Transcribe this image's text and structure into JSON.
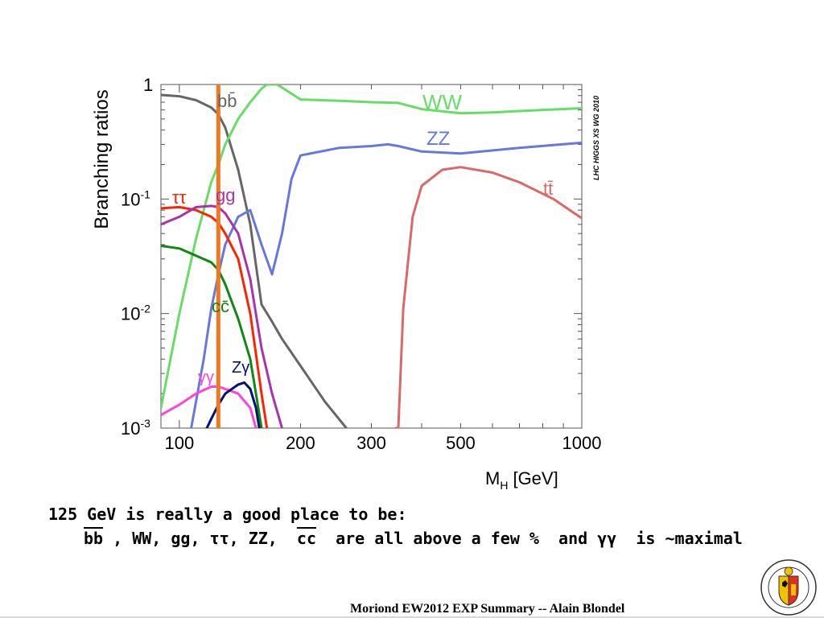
{
  "chart_data": {
    "type": "line",
    "xlabel": "M",
    "xlabel_sub": "H",
    "xlabel_unit": "[GeV]",
    "ylabel": "Branching ratios",
    "watermark": "LHC HIGGS XS WG 2010",
    "x_log_scale": true,
    "y_log_scale": true,
    "xlim": [
      90,
      1000
    ],
    "ylim": [
      0.001,
      1
    ],
    "x_ticks": [
      {
        "value": 100,
        "label": "100"
      },
      {
        "value": 200,
        "label": "200"
      },
      {
        "value": 300,
        "label": "300"
      },
      {
        "value": 500,
        "label": "500"
      },
      {
        "value": 1000,
        "label": "1000"
      }
    ],
    "y_ticks": [
      {
        "value": 1,
        "label": "1",
        "exp": ""
      },
      {
        "value": 0.1,
        "label": "10",
        "exp": "-1"
      },
      {
        "value": 0.01,
        "label": "10",
        "exp": "-2"
      },
      {
        "value": 0.001,
        "label": "10",
        "exp": "-3"
      }
    ],
    "vertical_marker": {
      "x": 125,
      "color": "#F07820"
    },
    "series": [
      {
        "name": "bb̄",
        "color": "#666666",
        "points": [
          [
            90,
            0.81
          ],
          [
            100,
            0.79
          ],
          [
            110,
            0.73
          ],
          [
            120,
            0.63
          ],
          [
            125,
            0.55
          ],
          [
            130,
            0.42
          ],
          [
            140,
            0.18
          ],
          [
            150,
            0.06
          ],
          [
            160,
            0.012
          ],
          [
            170,
            0.0085
          ],
          [
            180,
            0.006
          ],
          [
            200,
            0.0035
          ],
          [
            230,
            0.0017
          ],
          [
            260,
            0.001
          ]
        ]
      },
      {
        "name": "WW",
        "color": "#66DD66",
        "points": [
          [
            90,
            0.0015
          ],
          [
            100,
            0.01
          ],
          [
            110,
            0.045
          ],
          [
            120,
            0.14
          ],
          [
            125,
            0.2
          ],
          [
            130,
            0.3
          ],
          [
            140,
            0.5
          ],
          [
            150,
            0.7
          ],
          [
            160,
            0.92
          ],
          [
            165,
            1.0
          ],
          [
            175,
            1.0
          ],
          [
            180,
            0.94
          ],
          [
            200,
            0.74
          ],
          [
            250,
            0.72
          ],
          [
            300,
            0.7
          ],
          [
            350,
            0.69
          ],
          [
            400,
            0.61
          ],
          [
            500,
            0.56
          ],
          [
            600,
            0.57
          ],
          [
            800,
            0.6
          ],
          [
            1000,
            0.62
          ]
        ]
      },
      {
        "name": "ZZ",
        "color": "#6677DD",
        "points": [
          [
            107,
            0.001
          ],
          [
            115,
            0.004
          ],
          [
            120,
            0.011
          ],
          [
            125,
            0.022
          ],
          [
            130,
            0.04
          ],
          [
            140,
            0.07
          ],
          [
            150,
            0.08
          ],
          [
            160,
            0.04
          ],
          [
            170,
            0.022
          ],
          [
            180,
            0.05
          ],
          [
            190,
            0.15
          ],
          [
            200,
            0.24
          ],
          [
            250,
            0.28
          ],
          [
            300,
            0.29
          ],
          [
            330,
            0.3
          ],
          [
            350,
            0.29
          ],
          [
            400,
            0.26
          ],
          [
            500,
            0.25
          ],
          [
            700,
            0.28
          ],
          [
            1000,
            0.31
          ]
        ]
      },
      {
        "name": "tt̄",
        "color": "#DD6666",
        "points": [
          [
            345,
            0.001
          ],
          [
            350,
            0.001
          ],
          [
            360,
            0.011
          ],
          [
            380,
            0.07
          ],
          [
            400,
            0.13
          ],
          [
            450,
            0.18
          ],
          [
            500,
            0.19
          ],
          [
            600,
            0.17
          ],
          [
            700,
            0.14
          ],
          [
            850,
            0.1
          ],
          [
            1000,
            0.068
          ]
        ]
      },
      {
        "name": "ττ",
        "color": "#FF2200",
        "points": [
          [
            90,
            0.083
          ],
          [
            100,
            0.085
          ],
          [
            110,
            0.08
          ],
          [
            120,
            0.07
          ],
          [
            125,
            0.062
          ],
          [
            130,
            0.05
          ],
          [
            140,
            0.03
          ],
          [
            150,
            0.01
          ],
          [
            160,
            0.002
          ],
          [
            165,
            0.001
          ]
        ]
      },
      {
        "name": "gg",
        "color": "#AA33AA",
        "points": [
          [
            90,
            0.06
          ],
          [
            100,
            0.07
          ],
          [
            110,
            0.085
          ],
          [
            120,
            0.087
          ],
          [
            125,
            0.085
          ],
          [
            130,
            0.075
          ],
          [
            140,
            0.05
          ],
          [
            150,
            0.02
          ],
          [
            160,
            0.005
          ],
          [
            170,
            0.002
          ],
          [
            180,
            0.001
          ]
        ]
      },
      {
        "name": "cc̄",
        "color": "#118811",
        "points": [
          [
            90,
            0.039
          ],
          [
            100,
            0.037
          ],
          [
            110,
            0.032
          ],
          [
            120,
            0.028
          ],
          [
            125,
            0.024
          ],
          [
            130,
            0.018
          ],
          [
            140,
            0.009
          ],
          [
            150,
            0.004
          ],
          [
            155,
            0.002
          ],
          [
            160,
            0.001
          ]
        ]
      },
      {
        "name": "γγ",
        "color": "#FF44DD",
        "points": [
          [
            90,
            0.0013
          ],
          [
            100,
            0.0016
          ],
          [
            110,
            0.002
          ],
          [
            120,
            0.0023
          ],
          [
            125,
            0.0023
          ],
          [
            130,
            0.0022
          ],
          [
            140,
            0.002
          ],
          [
            150,
            0.0015
          ],
          [
            155,
            0.001
          ]
        ]
      },
      {
        "name": "Zγ",
        "color": "#001177",
        "points": [
          [
            117,
            0.001
          ],
          [
            120,
            0.0012
          ],
          [
            125,
            0.0016
          ],
          [
            130,
            0.002
          ],
          [
            140,
            0.0024
          ],
          [
            145,
            0.0025
          ],
          [
            150,
            0.0022
          ],
          [
            155,
            0.0015
          ],
          [
            158,
            0.001
          ]
        ]
      }
    ]
  },
  "caption": {
    "line1": "125 GeV is really a good place to be:",
    "line2_pre": "bb",
    "line2_mid1": " , WW, gg, ττ, ZZ,  ",
    "line2_cc": "cc",
    "line2_mid2": "  are all above a few %  and γγ  is ~maximal"
  },
  "footer": "Moriond EW2012 EXP Summary -- Alain Blondel",
  "logo": {
    "motto": "SCHOLA GENEVENSIS",
    "year": "1559"
  }
}
